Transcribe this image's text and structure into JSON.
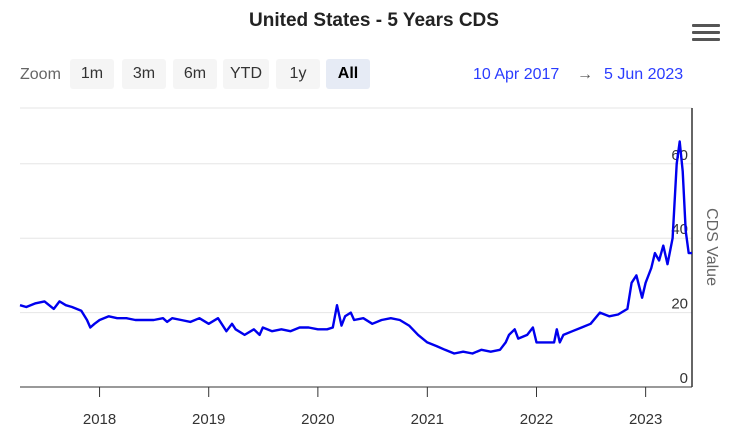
{
  "header": {
    "title": "United States - 5 Years CDS",
    "menu_icon": "hamburger-menu-icon"
  },
  "zoom": {
    "label": "Zoom",
    "buttons": [
      "1m",
      "3m",
      "6m",
      "YTD",
      "1y",
      "All"
    ],
    "selected": "All"
  },
  "range": {
    "from": "10 Apr 2017",
    "arrow": "→",
    "to": "5 Jun 2023"
  },
  "colors": {
    "line": "#0000ee",
    "range_text": "#2a3cff"
  },
  "chart_data": {
    "type": "line",
    "title": "United States - 5 Years CDS",
    "xlabel": "",
    "ylabel": "CDS Value",
    "xlim": [
      "2017-04-10",
      "2023-06-05"
    ],
    "ylim": [
      0,
      75
    ],
    "y_ticks": [
      0,
      20,
      40,
      60
    ],
    "x_ticks": [
      "2018",
      "2019",
      "2020",
      "2021",
      "2022",
      "2023"
    ],
    "grid": "horizontal",
    "legend": "none",
    "series": [
      {
        "x": [
          "2017-04-10",
          "2017-05-01",
          "2017-06-01",
          "2017-07-01",
          "2017-08-01",
          "2017-08-20",
          "2017-09-10",
          "2017-10-01",
          "2017-11-01",
          "2017-11-20",
          "2017-12-01",
          "2017-12-15",
          "2018-01-01",
          "2018-02-01",
          "2018-03-01",
          "2018-04-01",
          "2018-05-01",
          "2018-06-01",
          "2018-07-01",
          "2018-08-01",
          "2018-08-15",
          "2018-09-01",
          "2018-10-01",
          "2018-11-01",
          "2018-12-01",
          "2019-01-01",
          "2019-02-01",
          "2019-03-01",
          "2019-03-20",
          "2019-04-01",
          "2019-05-01",
          "2019-06-01",
          "2019-06-20",
          "2019-07-01",
          "2019-08-01",
          "2019-09-01",
          "2019-10-01",
          "2019-11-01",
          "2019-12-01",
          "2020-01-01",
          "2020-02-01",
          "2020-02-20",
          "2020-03-05",
          "2020-03-20",
          "2020-04-01",
          "2020-04-20",
          "2020-05-01",
          "2020-06-01",
          "2020-07-01",
          "2020-08-01",
          "2020-09-01",
          "2020-10-01",
          "2020-11-01",
          "2020-12-01",
          "2021-01-01",
          "2021-02-01",
          "2021-03-01",
          "2021-04-01",
          "2021-05-01",
          "2021-06-01",
          "2021-06-15",
          "2021-07-01",
          "2021-08-01",
          "2021-09-01",
          "2021-09-20",
          "2021-10-01",
          "2021-10-20",
          "2021-11-01",
          "2021-12-01",
          "2021-12-20",
          "2022-01-01",
          "2022-02-01",
          "2022-03-01",
          "2022-03-10",
          "2022-03-20",
          "2022-04-01",
          "2022-05-01",
          "2022-06-01",
          "2022-07-01",
          "2022-08-01",
          "2022-09-01",
          "2022-10-01",
          "2022-11-01",
          "2022-11-15",
          "2022-12-01",
          "2022-12-20",
          "2023-01-01",
          "2023-01-20",
          "2023-02-01",
          "2023-02-15",
          "2023-03-01",
          "2023-03-15",
          "2023-04-01",
          "2023-04-15",
          "2023-04-25",
          "2023-05-05",
          "2023-05-15",
          "2023-05-25",
          "2023-06-05"
        ],
        "y": [
          22,
          21.5,
          22.5,
          23,
          21,
          23,
          22,
          21.5,
          20.5,
          18,
          16,
          17,
          18,
          19,
          18.5,
          18.5,
          18,
          18,
          18,
          18.5,
          17.5,
          18.5,
          18,
          17.5,
          18.5,
          17,
          18.5,
          15,
          17,
          15.5,
          14,
          15.5,
          14,
          16,
          15,
          15.5,
          15,
          16,
          16,
          15.5,
          15.5,
          16,
          22,
          16.5,
          19,
          20,
          18,
          18.5,
          17,
          18,
          18.5,
          18,
          16.5,
          14,
          12,
          11,
          10,
          9,
          9.5,
          9,
          9.5,
          10,
          9.5,
          10,
          12,
          14,
          15.5,
          13,
          14,
          16,
          12,
          12,
          12,
          15.5,
          12,
          14,
          15,
          16,
          17,
          20,
          19,
          19.5,
          21,
          28,
          30,
          24,
          28,
          32,
          36,
          34,
          38,
          33,
          40,
          60,
          66,
          58,
          42,
          36,
          36
        ]
      }
    ]
  }
}
